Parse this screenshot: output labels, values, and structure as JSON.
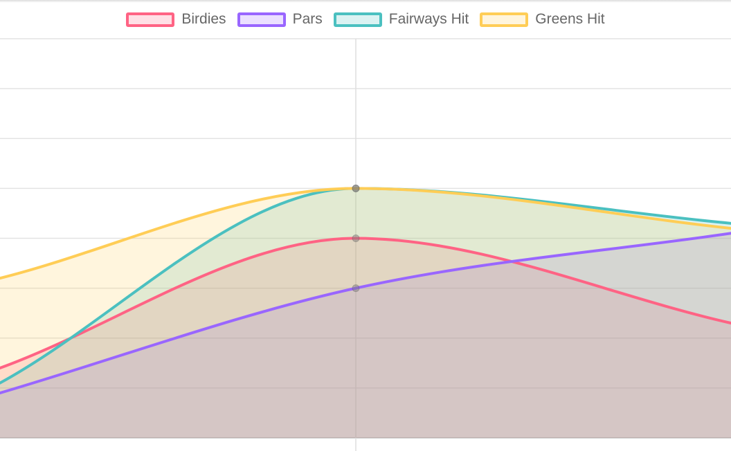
{
  "chart_data": {
    "type": "area",
    "title": "",
    "xlabel": "",
    "ylabel": "",
    "x": [
      "",
      "",
      ""
    ],
    "grid": true,
    "legend_position": "top",
    "ylim": [
      0,
      8
    ],
    "series": [
      {
        "name": "Birdies",
        "color": "#ff6384",
        "fill": "rgba(255,99,132,0.2)",
        "values": [
          1.4,
          4,
          2.3
        ]
      },
      {
        "name": "Pars",
        "color": "#9966ff",
        "fill": "rgba(153,102,255,0.2)",
        "values": [
          0.9,
          3,
          4.1
        ]
      },
      {
        "name": "Fairways Hit",
        "color": "#4bc0c0",
        "fill": "rgba(75,192,192,0.2)",
        "values": [
          1.1,
          5,
          4.3
        ]
      },
      {
        "name": "Greens Hit",
        "color": "#ffcd56",
        "fill": "rgba(255,205,86,0.2)",
        "values": [
          3.2,
          5,
          4.2
        ]
      }
    ]
  }
}
